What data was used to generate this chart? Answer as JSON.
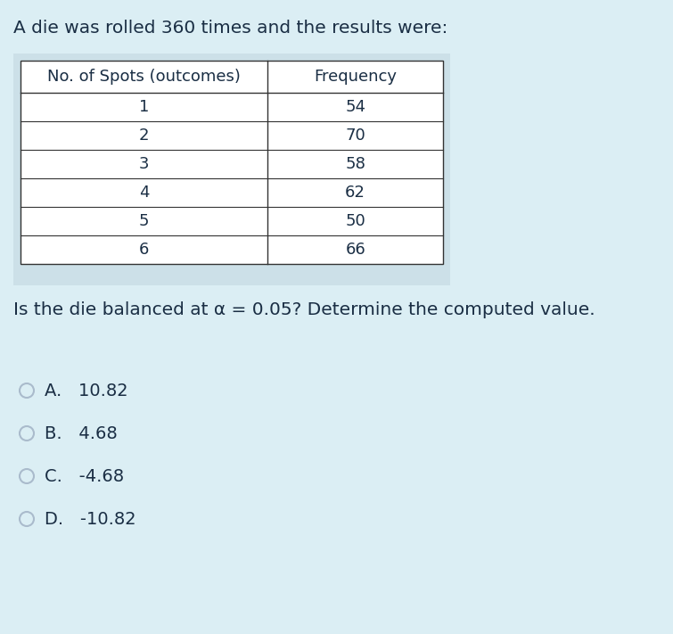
{
  "title": "A die was rolled 360 times and the results were:",
  "col1_header": "No. of Spots (outcomes)",
  "col2_header": "Frequency",
  "rows": [
    [
      "1",
      "54"
    ],
    [
      "2",
      "70"
    ],
    [
      "3",
      "58"
    ],
    [
      "4",
      "62"
    ],
    [
      "5",
      "50"
    ],
    [
      "6",
      "66"
    ]
  ],
  "question": "Is the die balanced at α = 0.05? Determine the computed value.",
  "options": [
    {
      "label": "A.",
      "value": "10.82"
    },
    {
      "label": "B.",
      "value": "4.68"
    },
    {
      "label": "C.",
      "value": "-4.68"
    },
    {
      "label": "D.",
      "value": "-10.82"
    }
  ],
  "bg_color": "#dbeef4",
  "table_outer_bg": "#cce0e8",
  "table_bg": "#ffffff",
  "text_color": "#1a2e44",
  "border_color": "#333333",
  "circle_color": "#aabbcc",
  "font_size_title": 14.5,
  "font_size_question": 14.5,
  "font_size_table_header": 13,
  "font_size_table_data": 13,
  "font_size_options": 14
}
